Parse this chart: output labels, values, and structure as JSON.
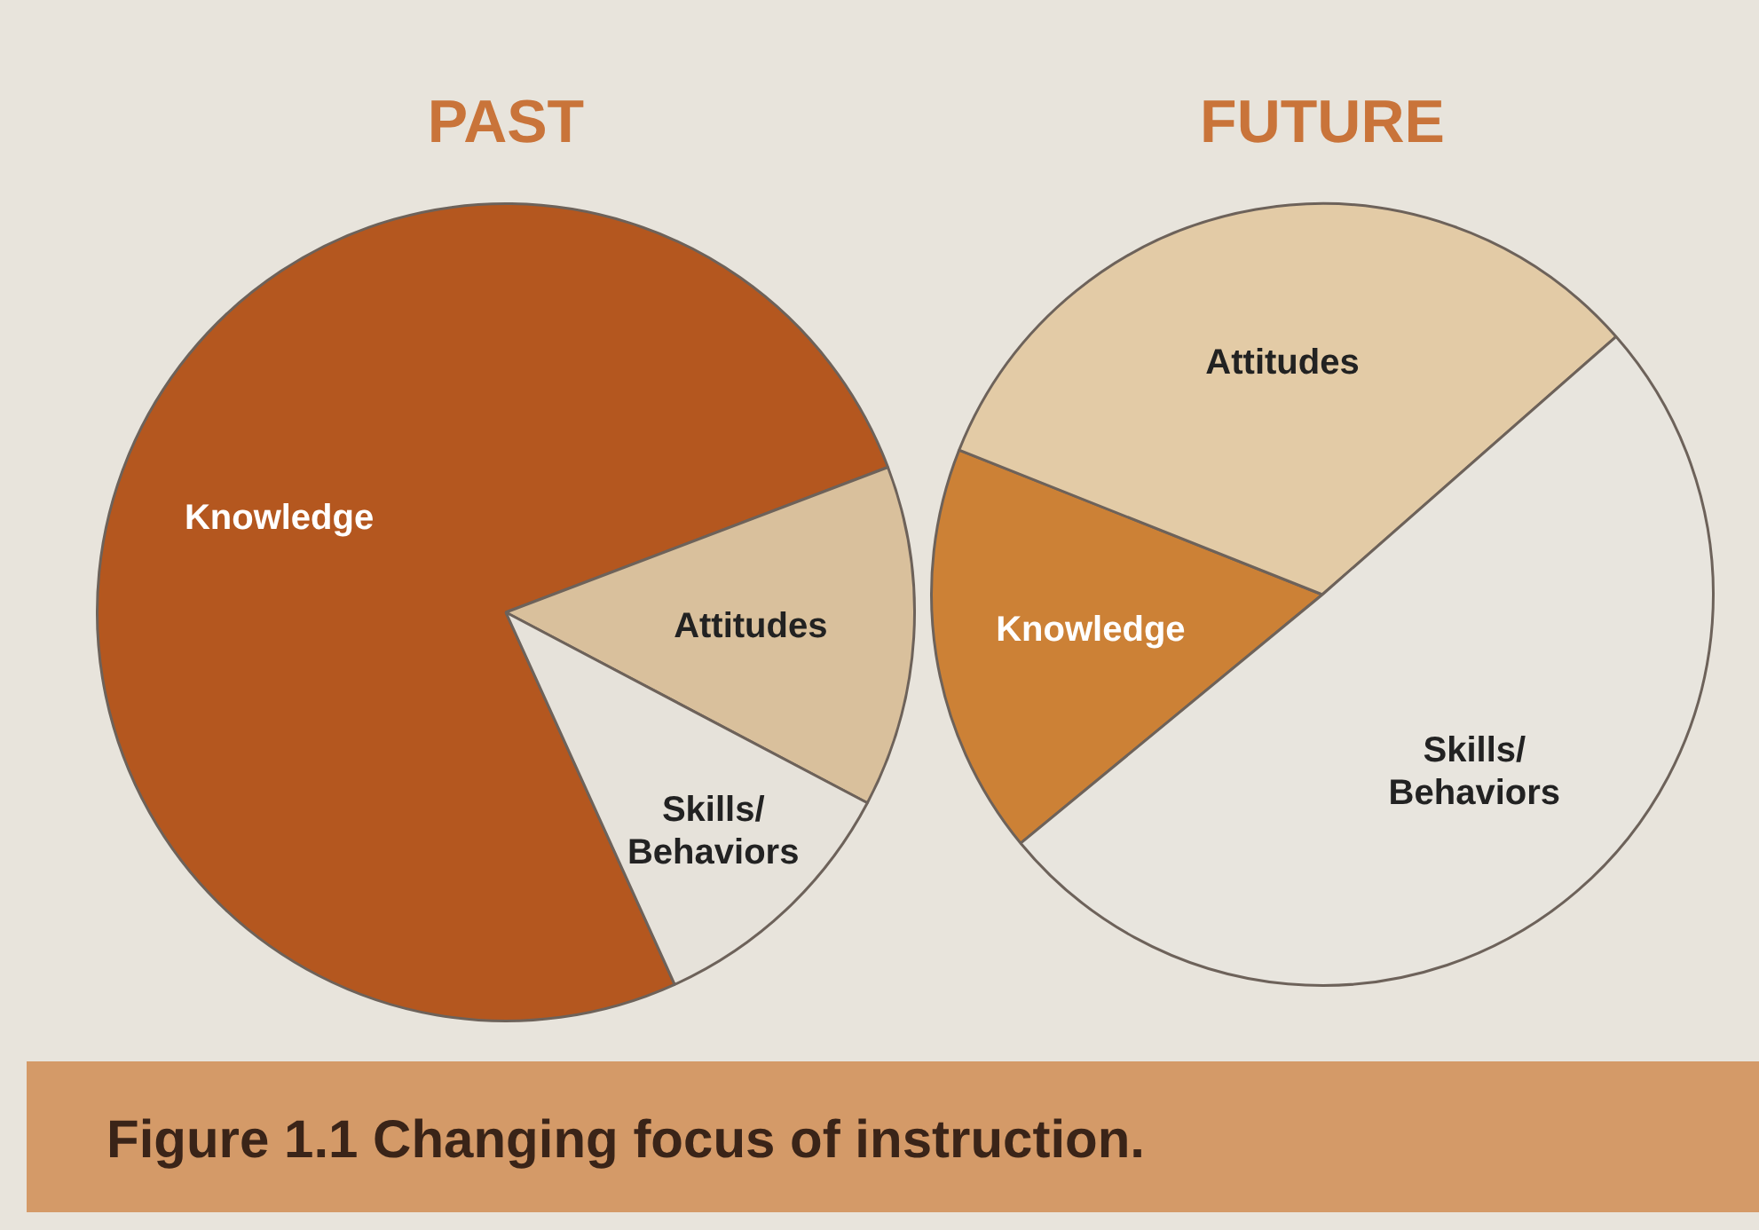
{
  "chart_data": [
    {
      "type": "pie",
      "title": "PAST",
      "categories": [
        "Knowledge",
        "Attitudes",
        "Skills/Behaviors"
      ],
      "values": [
        76,
        13.5,
        10.5
      ],
      "colors": [
        "#b4571f",
        "#d9c09c",
        "#e6e2da"
      ],
      "legend": false,
      "annotations": [
        "Figure 1.1 Changing focus of instruction."
      ]
    },
    {
      "type": "pie",
      "title": "FUTURE",
      "categories": [
        "Knowledge",
        "Attitudes",
        "Skills/Behaviors"
      ],
      "values": [
        17,
        32.5,
        50.5
      ],
      "colors": [
        "#cc8136",
        "#e3cba6",
        "#e8e5de"
      ],
      "legend": false
    }
  ]
}
